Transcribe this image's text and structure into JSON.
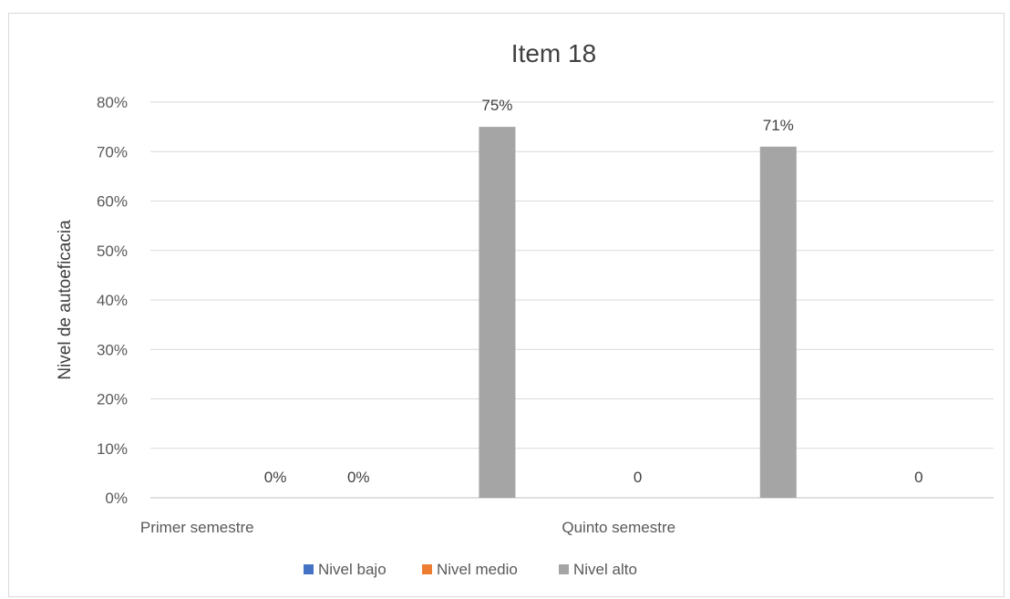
{
  "chart_data": {
    "type": "bar",
    "title": "Item 18",
    "ylabel": "Nivel de autoeficacia",
    "xlabel": "",
    "ylim": [
      0,
      80
    ],
    "y_ticks": [
      "0%",
      "10%",
      "20%",
      "30%",
      "40%",
      "50%",
      "60%",
      "70%",
      "80%"
    ],
    "categories": [
      "Primer semestre",
      "Quinto semestre"
    ],
    "series": [
      {
        "name": "Nivel bajo",
        "color": "#4472c4",
        "values": [
          0,
          null
        ],
        "labels": [
          "0%",
          "0"
        ]
      },
      {
        "name": "Nivel medio",
        "color": "#ed7d31",
        "values": [
          0,
          71
        ],
        "labels": [
          "0%",
          "71%"
        ]
      },
      {
        "name": "Nivel alto",
        "color": "#a5a5a5",
        "values": [
          75,
          null
        ],
        "labels": [
          "75%",
          "0"
        ]
      }
    ],
    "grid": true,
    "legend_position": "bottom"
  }
}
